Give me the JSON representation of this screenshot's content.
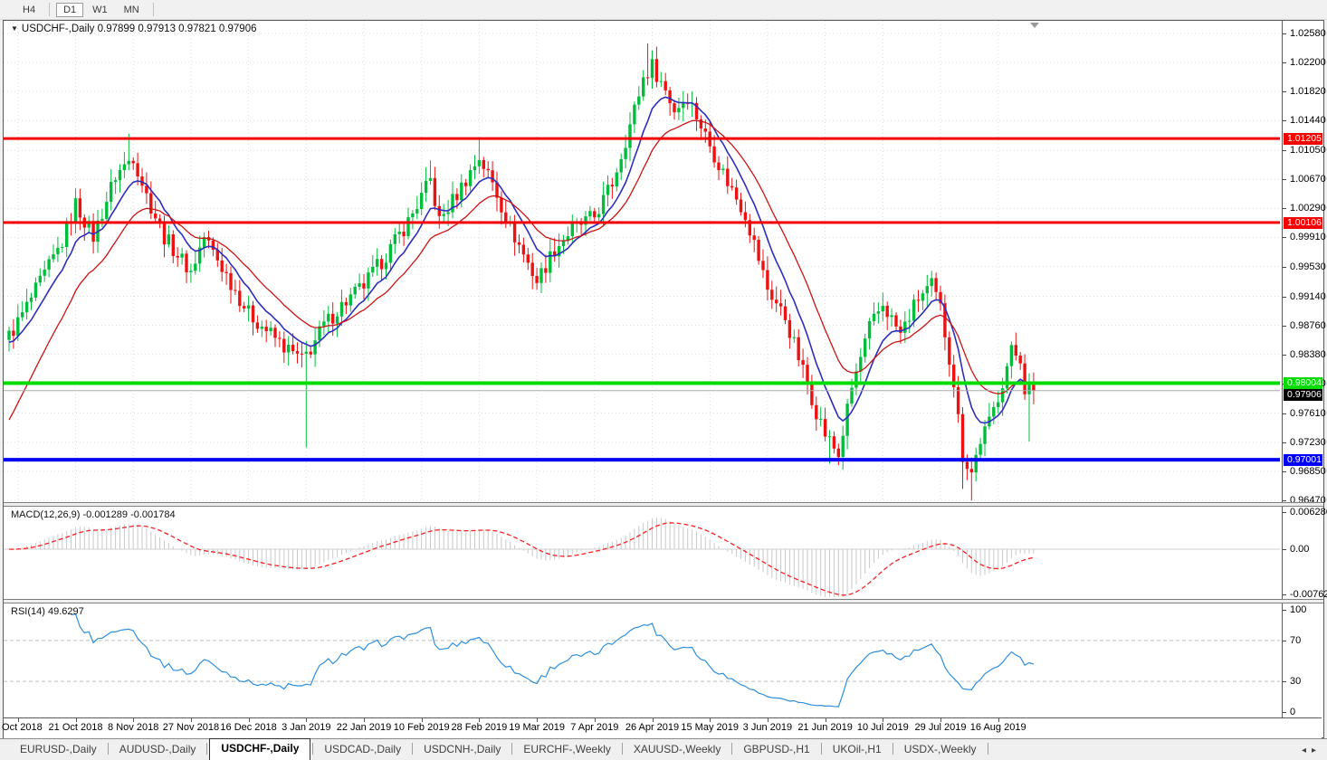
{
  "toolbar": {
    "timeframes": [
      {
        "label": "H4",
        "active": false
      },
      {
        "label": "D1",
        "active": true
      },
      {
        "label": "W1",
        "active": false
      },
      {
        "label": "MN",
        "active": false
      }
    ]
  },
  "icons": {
    "dropdown": "▼",
    "scroll_left": "◂",
    "scroll_right": "▸"
  },
  "chart": {
    "symbol_label": "USDCHF-,Daily",
    "ohlc": {
      "open": "0.97899",
      "high": "0.97913",
      "low": "0.97821",
      "close": "0.97906"
    },
    "ohlc_text": "0.97899 0.97913 0.97821 0.97906"
  },
  "macd": {
    "label": "MACD(12,26,9)",
    "values": "-0.001289 -0.001784",
    "axis_labels": [
      "0.006286",
      "0.00",
      "-0.00762"
    ]
  },
  "rsi": {
    "label": "RSI(14)",
    "value": "49.6297",
    "axis_labels": [
      "100",
      "70",
      "30",
      "0"
    ]
  },
  "tabs": {
    "items": [
      {
        "label": "EURUSD-,Daily",
        "active": false
      },
      {
        "label": "AUDUSD-,Daily",
        "active": false
      },
      {
        "label": "USDCHF-,Daily",
        "active": true
      },
      {
        "label": "USDCAD-,Daily",
        "active": false
      },
      {
        "label": "USDCNH-,Daily",
        "active": false
      },
      {
        "label": "EURCHF-,Weekly",
        "active": false
      },
      {
        "label": "XAUUSD-,Weekly",
        "active": false
      },
      {
        "label": "GBPUSD-,H1",
        "active": false
      },
      {
        "label": "UKOil-,H1",
        "active": false
      },
      {
        "label": "USDX-,Weekly",
        "active": false
      }
    ]
  },
  "chart_data": {
    "type": "candlestick+indicators",
    "symbol": "USDCHF",
    "timeframe": "Daily",
    "y_range": {
      "top": 1.0258,
      "bottom": 0.9647
    },
    "price_ticks": [
      1.0258,
      1.022,
      1.0182,
      1.0144,
      1.0105,
      1.0067,
      1.0029,
      0.9991,
      0.9953,
      0.9914,
      0.9876,
      0.9838,
      0.98,
      0.9761,
      0.9723,
      0.9685,
      0.9647
    ],
    "date_ticks": {
      "labels": [
        "2 Oct 2018",
        "21 Oct 2018",
        "8 Nov 2018",
        "27 Nov 2018",
        "16 Dec 2018",
        "3 Jan 2019",
        "22 Jan 2019",
        "10 Feb 2019",
        "28 Feb 2019",
        "19 Mar 2019",
        "7 Apr 2019",
        "26 Apr 2019",
        "15 May 2019",
        "3 Jun 2019",
        "21 Jun 2019",
        "10 Jul 2019",
        "29 Jul 2019",
        "16 Aug 2019"
      ],
      "days": [
        2,
        15,
        28,
        41,
        54,
        67,
        80,
        93,
        106,
        119,
        132,
        145,
        158,
        171,
        184,
        197,
        210,
        223
      ]
    },
    "candles": {
      "count": 232,
      "close_anchors": [
        [
          0,
          0.9862
        ],
        [
          2,
          0.988
        ],
        [
          8,
          0.9942
        ],
        [
          12,
          0.9985
        ],
        [
          15,
          1.0035
        ],
        [
          19,
          0.9992
        ],
        [
          24,
          1.0072
        ],
        [
          28,
          1.0098
        ],
        [
          31,
          1.0046
        ],
        [
          35,
          0.9992
        ],
        [
          41,
          0.9946
        ],
        [
          44,
          0.9992
        ],
        [
          48,
          0.9952
        ],
        [
          54,
          0.9892
        ],
        [
          58,
          0.987
        ],
        [
          62,
          0.9848
        ],
        [
          66,
          0.983
        ],
        [
          68,
          0.9846
        ],
        [
          71,
          0.9876
        ],
        [
          75,
          0.9902
        ],
        [
          80,
          0.9928
        ],
        [
          85,
          0.9968
        ],
        [
          90,
          1.0012
        ],
        [
          93,
          1.0044
        ],
        [
          95,
          1.0066
        ],
        [
          97,
          1.0012
        ],
        [
          101,
          1.0048
        ],
        [
          106,
          1.0096
        ],
        [
          109,
          1.0062
        ],
        [
          113,
          1.0004
        ],
        [
          119,
          0.9934
        ],
        [
          123,
          0.9976
        ],
        [
          127,
          1.0002
        ],
        [
          132,
          1.0018
        ],
        [
          136,
          1.0062
        ],
        [
          140,
          1.0138
        ],
        [
          143,
          1.02
        ],
        [
          145,
          1.0216
        ],
        [
          148,
          1.0184
        ],
        [
          150,
          1.0158
        ],
        [
          153,
          1.0176
        ],
        [
          158,
          1.0112
        ],
        [
          162,
          1.0064
        ],
        [
          166,
          1.0022
        ],
        [
          171,
          0.9924
        ],
        [
          175,
          0.9886
        ],
        [
          178,
          0.9834
        ],
        [
          182,
          0.9764
        ],
        [
          184,
          0.9734
        ],
        [
          187,
          0.9706
        ],
        [
          190,
          0.9794
        ],
        [
          194,
          0.9872
        ],
        [
          197,
          0.9904
        ],
        [
          201,
          0.9864
        ],
        [
          205,
          0.9912
        ],
        [
          208,
          0.9928
        ],
        [
          210,
          0.9898
        ],
        [
          213,
          0.9802
        ],
        [
          215,
          0.9706
        ],
        [
          217,
          0.9684
        ],
        [
          219,
          0.9726
        ],
        [
          221,
          0.9748
        ],
        [
          223,
          0.9784
        ],
        [
          226,
          0.9842
        ],
        [
          228,
          0.9834
        ],
        [
          229,
          0.9794
        ],
        [
          231,
          0.97906
        ]
      ],
      "wick_overrides": [
        {
          "d": 27,
          "high": 1.0127
        },
        {
          "d": 67,
          "low": 0.9716
        },
        {
          "d": 95,
          "high": 1.0092
        },
        {
          "d": 106,
          "high": 1.0121
        },
        {
          "d": 144,
          "high": 1.0245
        },
        {
          "d": 145,
          "high": 1.0236
        },
        {
          "d": 185,
          "low": 0.9695
        },
        {
          "d": 187,
          "low": 0.9693
        },
        {
          "d": 215,
          "low": 0.9662
        },
        {
          "d": 217,
          "low": 0.9647
        },
        {
          "d": 230,
          "low": 0.9724
        }
      ]
    },
    "moving_averages": [
      {
        "name": "fast-ema",
        "period": 9,
        "color": "#2E2EBE",
        "width": 1.6,
        "seed": 0.985
      },
      {
        "name": "slow-ema",
        "period": 20,
        "color": "#CC1414",
        "width": 1.3,
        "seed": 0.974
      }
    ],
    "levels": [
      {
        "price": 1.01205,
        "label": "1.01205",
        "color": "#F40000",
        "thickness": 3
      },
      {
        "price": 1.00106,
        "label": "1.00106",
        "color": "#F40000",
        "thickness": 3
      },
      {
        "price": 0.98004,
        "label": "0.98004",
        "color": "#00DC00",
        "thickness": 4
      },
      {
        "price": 0.97001,
        "label": "0.97001",
        "color": "#0000F4",
        "thickness": 4
      }
    ],
    "current_price": {
      "price": 0.97906,
      "label": "0.97906",
      "line_color": "#ABABAB",
      "badge_bg": "#000000"
    },
    "macd_indicator": {
      "fast": 12,
      "slow": 26,
      "signal": 9,
      "axis_ticks": [
        0.006286,
        0,
        -0.00762
      ],
      "hist_color": "#C9C9C9",
      "signal_color": "#F82020"
    },
    "rsi_indicator": {
      "period": 14,
      "levels": [
        30,
        70
      ],
      "axis_ticks": [
        100,
        70,
        30,
        0
      ],
      "color": "#2E8FDE"
    },
    "colors": {
      "bull": "#00BE3C",
      "bear": "#EC1212",
      "grid": "#DCDCDC",
      "background": "#FFFFFF"
    }
  }
}
